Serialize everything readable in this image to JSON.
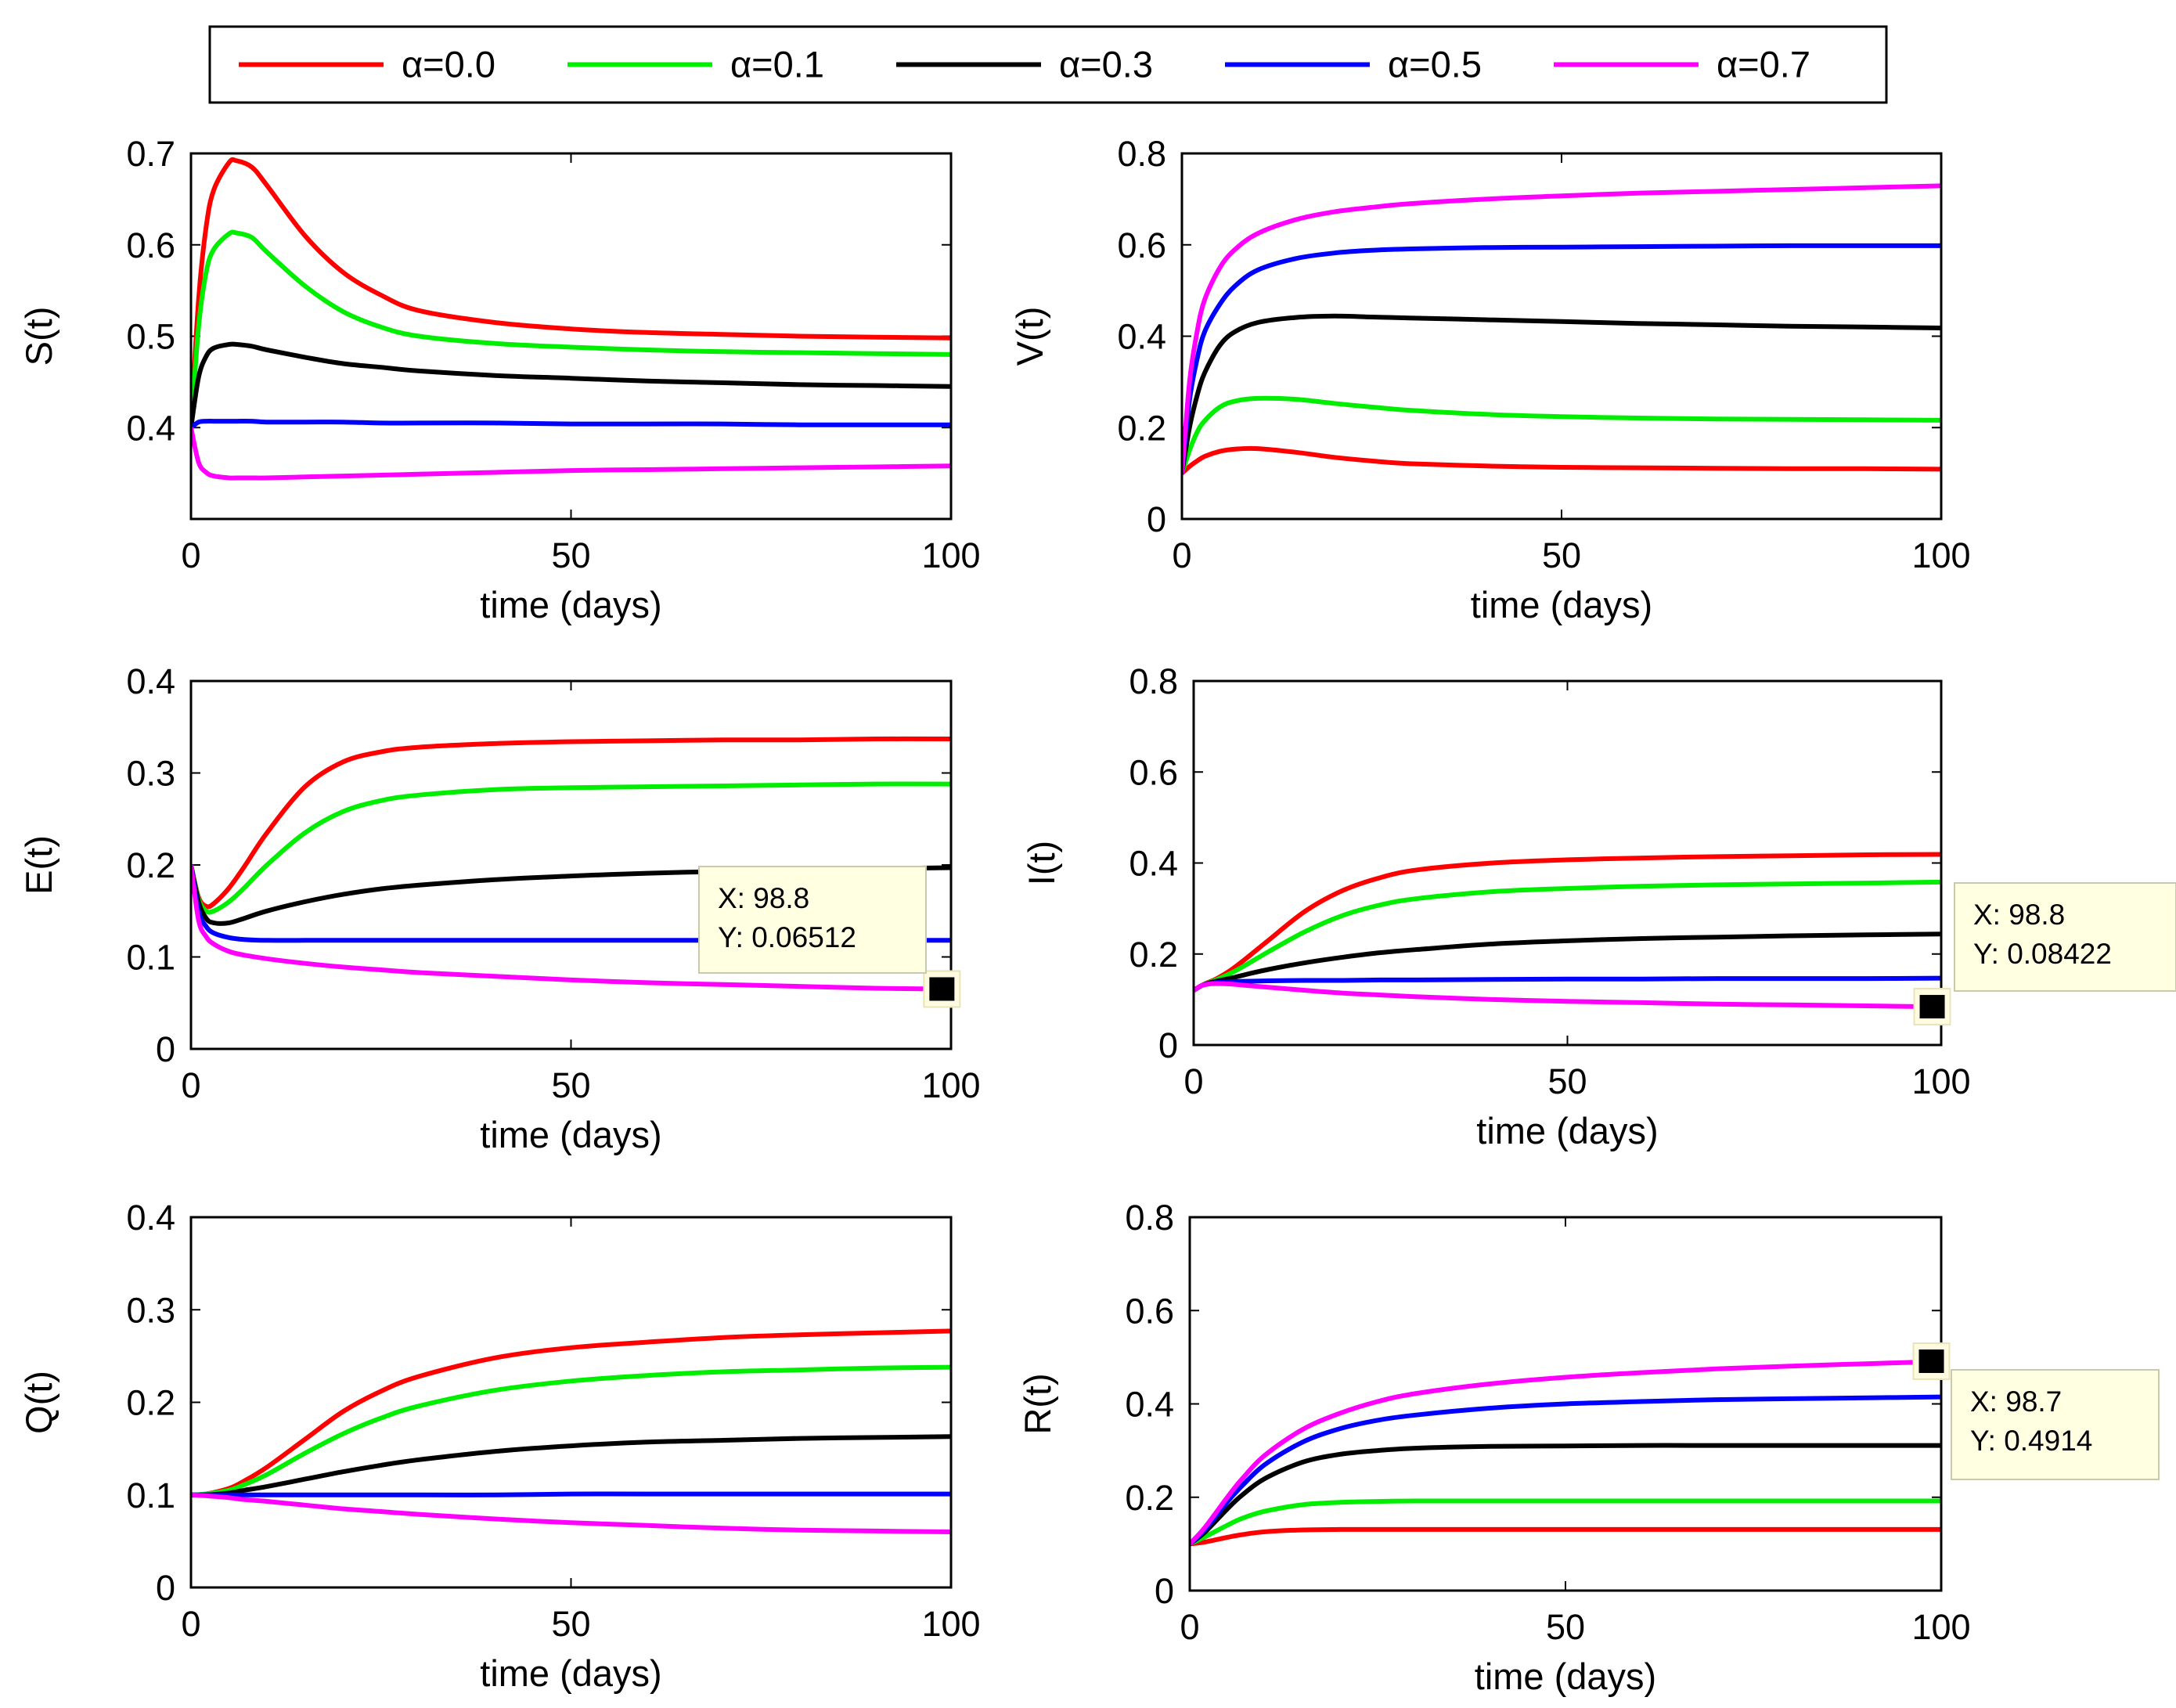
{
  "legend": {
    "series": [
      {
        "label": "α=0.0",
        "color": "#ff0000"
      },
      {
        "label": "α=0.1",
        "color": "#00ee00"
      },
      {
        "label": "α=0.3",
        "color": "#000000"
      },
      {
        "label": "α=0.5",
        "color": "#0000ff"
      },
      {
        "label": "α=0.7",
        "color": "#ff00ff"
      }
    ]
  },
  "chart_data": [
    {
      "id": "S",
      "type": "line",
      "title": "",
      "xlabel": "time (days)",
      "ylabel": "S(t)",
      "xlim": [
        0,
        100
      ],
      "ylim": [
        0.3,
        0.7
      ],
      "xticks": [
        0,
        50,
        100
      ],
      "xtick_labels": [
        "0",
        "50",
        "100"
      ],
      "yticks": [
        0.4,
        0.5,
        0.6,
        0.7
      ],
      "ytick_labels": [
        "0.4",
        "0.5",
        "0.6",
        "0.7"
      ],
      "x": [
        0,
        1,
        2,
        3,
        5,
        6,
        8,
        10,
        15,
        20,
        25,
        30,
        40,
        50,
        60,
        70,
        80,
        90,
        100
      ],
      "series": [
        {
          "name": "α=0.0",
          "values": [
            0.4,
            0.54,
            0.62,
            0.66,
            0.69,
            0.692,
            0.685,
            0.665,
            0.61,
            0.57,
            0.545,
            0.528,
            0.515,
            0.508,
            0.504,
            0.502,
            0.5,
            0.499,
            0.498
          ]
        },
        {
          "name": "α=0.1",
          "values": [
            0.4,
            0.51,
            0.57,
            0.595,
            0.612,
            0.613,
            0.608,
            0.592,
            0.555,
            0.527,
            0.51,
            0.5,
            0.492,
            0.488,
            0.485,
            0.483,
            0.482,
            0.481,
            0.48
          ]
        },
        {
          "name": "α=0.3",
          "values": [
            0.4,
            0.455,
            0.478,
            0.487,
            0.491,
            0.491,
            0.489,
            0.485,
            0.477,
            0.47,
            0.466,
            0.462,
            0.457,
            0.454,
            0.451,
            0.449,
            0.447,
            0.446,
            0.445
          ]
        },
        {
          "name": "α=0.5",
          "values": [
            0.4,
            0.406,
            0.407,
            0.407,
            0.407,
            0.407,
            0.407,
            0.406,
            0.406,
            0.406,
            0.405,
            0.405,
            0.405,
            0.404,
            0.404,
            0.404,
            0.403,
            0.403,
            0.403
          ]
        },
        {
          "name": "α=0.7",
          "values": [
            0.4,
            0.362,
            0.351,
            0.347,
            0.345,
            0.345,
            0.345,
            0.345,
            0.346,
            0.347,
            0.348,
            0.349,
            0.351,
            0.353,
            0.354,
            0.355,
            0.356,
            0.357,
            0.358
          ]
        }
      ]
    },
    {
      "id": "V",
      "type": "line",
      "title": "",
      "xlabel": "time (days)",
      "ylabel": "V(t)",
      "xlim": [
        0,
        100
      ],
      "ylim": [
        0,
        0.8
      ],
      "xticks": [
        0,
        50,
        100
      ],
      "xtick_labels": [
        "0",
        "50",
        "100"
      ],
      "yticks": [
        0,
        0.2,
        0.4,
        0.6,
        0.8
      ],
      "ytick_labels": [
        "0",
        "0.2",
        "0.4",
        "0.6",
        "0.8"
      ],
      "x": [
        0,
        1,
        2,
        3,
        5,
        7,
        10,
        15,
        20,
        25,
        30,
        40,
        50,
        60,
        70,
        80,
        90,
        100
      ],
      "series": [
        {
          "name": "α=0.0",
          "values": [
            0.1,
            0.115,
            0.127,
            0.137,
            0.148,
            0.153,
            0.154,
            0.146,
            0.135,
            0.127,
            0.121,
            0.116,
            0.113,
            0.112,
            0.111,
            0.11,
            0.11,
            0.109
          ]
        },
        {
          "name": "α=0.1",
          "values": [
            0.1,
            0.15,
            0.19,
            0.215,
            0.245,
            0.258,
            0.264,
            0.262,
            0.253,
            0.245,
            0.238,
            0.229,
            0.224,
            0.221,
            0.219,
            0.218,
            0.217,
            0.216
          ]
        },
        {
          "name": "α=0.3",
          "values": [
            0.1,
            0.2,
            0.27,
            0.32,
            0.38,
            0.41,
            0.43,
            0.441,
            0.444,
            0.442,
            0.44,
            0.436,
            0.432,
            0.428,
            0.425,
            0.422,
            0.42,
            0.418
          ]
        },
        {
          "name": "α=0.5",
          "values": [
            0.1,
            0.26,
            0.35,
            0.41,
            0.47,
            0.51,
            0.545,
            0.57,
            0.582,
            0.588,
            0.591,
            0.594,
            0.595,
            0.596,
            0.597,
            0.598,
            0.598,
            0.598
          ]
        },
        {
          "name": "α=0.7",
          "values": [
            0.1,
            0.3,
            0.41,
            0.48,
            0.55,
            0.59,
            0.625,
            0.655,
            0.672,
            0.682,
            0.69,
            0.7,
            0.707,
            0.713,
            0.717,
            0.721,
            0.725,
            0.729
          ]
        }
      ]
    },
    {
      "id": "E",
      "type": "line",
      "title": "",
      "xlabel": "time (days)",
      "ylabel": "E(t)",
      "xlim": [
        0,
        100
      ],
      "ylim": [
        0,
        0.4
      ],
      "xticks": [
        0,
        50,
        100
      ],
      "xtick_labels": [
        "0",
        "50",
        "100"
      ],
      "yticks": [
        0,
        0.1,
        0.2,
        0.3,
        0.4
      ],
      "ytick_labels": [
        "0",
        "0.1",
        "0.2",
        "0.3",
        "0.4"
      ],
      "x": [
        0,
        1,
        2,
        3,
        5,
        7,
        10,
        15,
        20,
        25,
        30,
        40,
        50,
        60,
        70,
        80,
        90,
        100
      ],
      "series": [
        {
          "name": "α=0.0",
          "values": [
            0.2,
            0.165,
            0.155,
            0.158,
            0.175,
            0.198,
            0.235,
            0.285,
            0.312,
            0.323,
            0.328,
            0.332,
            0.334,
            0.335,
            0.336,
            0.336,
            0.337,
            0.337
          ]
        },
        {
          "name": "α=0.1",
          "values": [
            0.2,
            0.163,
            0.15,
            0.15,
            0.16,
            0.175,
            0.2,
            0.235,
            0.258,
            0.27,
            0.276,
            0.282,
            0.284,
            0.285,
            0.286,
            0.287,
            0.288,
            0.288
          ]
        },
        {
          "name": "α=0.3",
          "values": [
            0.2,
            0.16,
            0.142,
            0.137,
            0.137,
            0.142,
            0.15,
            0.16,
            0.168,
            0.174,
            0.178,
            0.184,
            0.188,
            0.191,
            0.193,
            0.195,
            0.196,
            0.197
          ]
        },
        {
          "name": "α=0.5",
          "values": [
            0.2,
            0.15,
            0.133,
            0.126,
            0.121,
            0.119,
            0.118,
            0.118,
            0.118,
            0.118,
            0.118,
            0.118,
            0.118,
            0.118,
            0.118,
            0.118,
            0.118,
            0.118
          ]
        },
        {
          "name": "α=0.7",
          "values": [
            0.2,
            0.14,
            0.122,
            0.114,
            0.106,
            0.102,
            0.098,
            0.093,
            0.089,
            0.086,
            0.083,
            0.079,
            0.075,
            0.072,
            0.07,
            0.068,
            0.066,
            0.065
          ]
        }
      ],
      "annotation": {
        "x": 98.8,
        "y": 0.06512,
        "text_x": "X: 98.8",
        "text_y": "Y: 0.06512"
      }
    },
    {
      "id": "I",
      "type": "line",
      "title": "",
      "xlabel": "time (days)",
      "ylabel": "I(t)",
      "xlim": [
        0,
        100
      ],
      "ylim": [
        0,
        0.8
      ],
      "xticks": [
        0,
        50,
        100
      ],
      "xtick_labels": [
        "0",
        "50",
        "100"
      ],
      "yticks": [
        0,
        0.2,
        0.4,
        0.6,
        0.8
      ],
      "ytick_labels": [
        "0",
        "0.2",
        "0.4",
        "0.6",
        "0.8"
      ],
      "x": [
        0,
        1,
        2,
        3,
        5,
        7,
        10,
        15,
        20,
        25,
        30,
        40,
        50,
        60,
        70,
        80,
        90,
        100
      ],
      "series": [
        {
          "name": "α=0.0",
          "values": [
            0.12,
            0.13,
            0.138,
            0.145,
            0.165,
            0.19,
            0.23,
            0.295,
            0.34,
            0.368,
            0.385,
            0.4,
            0.407,
            0.411,
            0.414,
            0.416,
            0.418,
            0.419
          ]
        },
        {
          "name": "α=0.1",
          "values": [
            0.12,
            0.13,
            0.137,
            0.143,
            0.158,
            0.176,
            0.205,
            0.25,
            0.285,
            0.308,
            0.322,
            0.337,
            0.344,
            0.349,
            0.352,
            0.354,
            0.356,
            0.358
          ]
        },
        {
          "name": "α=0.3",
          "values": [
            0.12,
            0.13,
            0.136,
            0.14,
            0.147,
            0.155,
            0.166,
            0.181,
            0.193,
            0.203,
            0.21,
            0.222,
            0.229,
            0.234,
            0.237,
            0.24,
            0.242,
            0.244
          ]
        },
        {
          "name": "α=0.5",
          "values": [
            0.12,
            0.13,
            0.135,
            0.137,
            0.139,
            0.14,
            0.141,
            0.142,
            0.142,
            0.143,
            0.143,
            0.144,
            0.145,
            0.145,
            0.146,
            0.146,
            0.146,
            0.147
          ]
        },
        {
          "name": "α=0.7",
          "values": [
            0.12,
            0.13,
            0.134,
            0.135,
            0.134,
            0.131,
            0.127,
            0.12,
            0.114,
            0.11,
            0.106,
            0.1,
            0.096,
            0.093,
            0.09,
            0.088,
            0.086,
            0.084
          ]
        }
      ],
      "annotation": {
        "x": 98.8,
        "y": 0.08422,
        "text_x": "X: 98.8",
        "text_y": "Y: 0.08422"
      }
    },
    {
      "id": "Q",
      "type": "line",
      "title": "",
      "xlabel": "time (days)",
      "ylabel": "Q(t)",
      "xlim": [
        0,
        100
      ],
      "ylim": [
        0,
        0.4
      ],
      "xticks": [
        0,
        50,
        100
      ],
      "xtick_labels": [
        "0",
        "50",
        "100"
      ],
      "yticks": [
        0,
        0.1,
        0.2,
        0.3,
        0.4
      ],
      "ytick_labels": [
        "0",
        "0.1",
        "0.2",
        "0.3",
        "0.4"
      ],
      "x": [
        0,
        2,
        5,
        7,
        10,
        15,
        20,
        25,
        30,
        40,
        50,
        60,
        70,
        80,
        90,
        100
      ],
      "series": [
        {
          "name": "α=0.0",
          "values": [
            0.1,
            0.101,
            0.107,
            0.115,
            0.13,
            0.16,
            0.19,
            0.212,
            0.228,
            0.248,
            0.259,
            0.265,
            0.27,
            0.273,
            0.275,
            0.277
          ]
        },
        {
          "name": "α=0.1",
          "values": [
            0.1,
            0.101,
            0.105,
            0.111,
            0.122,
            0.145,
            0.166,
            0.183,
            0.196,
            0.213,
            0.223,
            0.229,
            0.233,
            0.235,
            0.237,
            0.238
          ]
        },
        {
          "name": "α=0.3",
          "values": [
            0.1,
            0.1,
            0.102,
            0.105,
            0.109,
            0.117,
            0.125,
            0.132,
            0.138,
            0.147,
            0.153,
            0.157,
            0.159,
            0.161,
            0.162,
            0.163
          ]
        },
        {
          "name": "α=0.5",
          "values": [
            0.1,
            0.1,
            0.1,
            0.1,
            0.1,
            0.1,
            0.1,
            0.1,
            0.1,
            0.1,
            0.101,
            0.101,
            0.101,
            0.101,
            0.101,
            0.101
          ]
        },
        {
          "name": "α=0.7",
          "values": [
            0.1,
            0.099,
            0.097,
            0.095,
            0.093,
            0.089,
            0.085,
            0.082,
            0.079,
            0.074,
            0.07,
            0.067,
            0.064,
            0.062,
            0.061,
            0.06
          ]
        }
      ]
    },
    {
      "id": "R",
      "type": "line",
      "title": "",
      "xlabel": "time (days)",
      "ylabel": "R(t)",
      "xlim": [
        0,
        100
      ],
      "ylim": [
        0,
        0.8
      ],
      "xticks": [
        0,
        50,
        100
      ],
      "xtick_labels": [
        "0",
        "50",
        "100"
      ],
      "yticks": [
        0,
        0.2,
        0.4,
        0.6,
        0.8
      ],
      "ytick_labels": [
        "0",
        "0.2",
        "0.4",
        "0.6",
        "0.8"
      ],
      "x": [
        0,
        2,
        5,
        7,
        10,
        15,
        20,
        25,
        30,
        40,
        50,
        60,
        70,
        80,
        90,
        100
      ],
      "series": [
        {
          "name": "α=0.0",
          "values": [
            0.1,
            0.104,
            0.114,
            0.12,
            0.126,
            0.13,
            0.131,
            0.131,
            0.131,
            0.131,
            0.131,
            0.131,
            0.131,
            0.131,
            0.131,
            0.131
          ]
        },
        {
          "name": "α=0.1",
          "values": [
            0.1,
            0.115,
            0.14,
            0.155,
            0.17,
            0.184,
            0.189,
            0.191,
            0.192,
            0.192,
            0.192,
            0.192,
            0.192,
            0.192,
            0.192,
            0.192
          ]
        },
        {
          "name": "α=0.3",
          "values": [
            0.1,
            0.125,
            0.175,
            0.205,
            0.24,
            0.275,
            0.292,
            0.3,
            0.305,
            0.309,
            0.31,
            0.311,
            0.311,
            0.311,
            0.311,
            0.311
          ]
        },
        {
          "name": "α=0.5",
          "values": [
            0.1,
            0.13,
            0.19,
            0.225,
            0.27,
            0.318,
            0.347,
            0.365,
            0.376,
            0.391,
            0.4,
            0.405,
            0.409,
            0.411,
            0.413,
            0.415
          ]
        },
        {
          "name": "α=0.7",
          "values": [
            0.1,
            0.135,
            0.2,
            0.24,
            0.29,
            0.345,
            0.38,
            0.405,
            0.422,
            0.443,
            0.457,
            0.467,
            0.475,
            0.481,
            0.486,
            0.491
          ]
        }
      ],
      "annotation": {
        "x": 98.7,
        "y": 0.4914,
        "text_x": "X: 98.7",
        "text_y": "Y: 0.4914"
      }
    }
  ]
}
